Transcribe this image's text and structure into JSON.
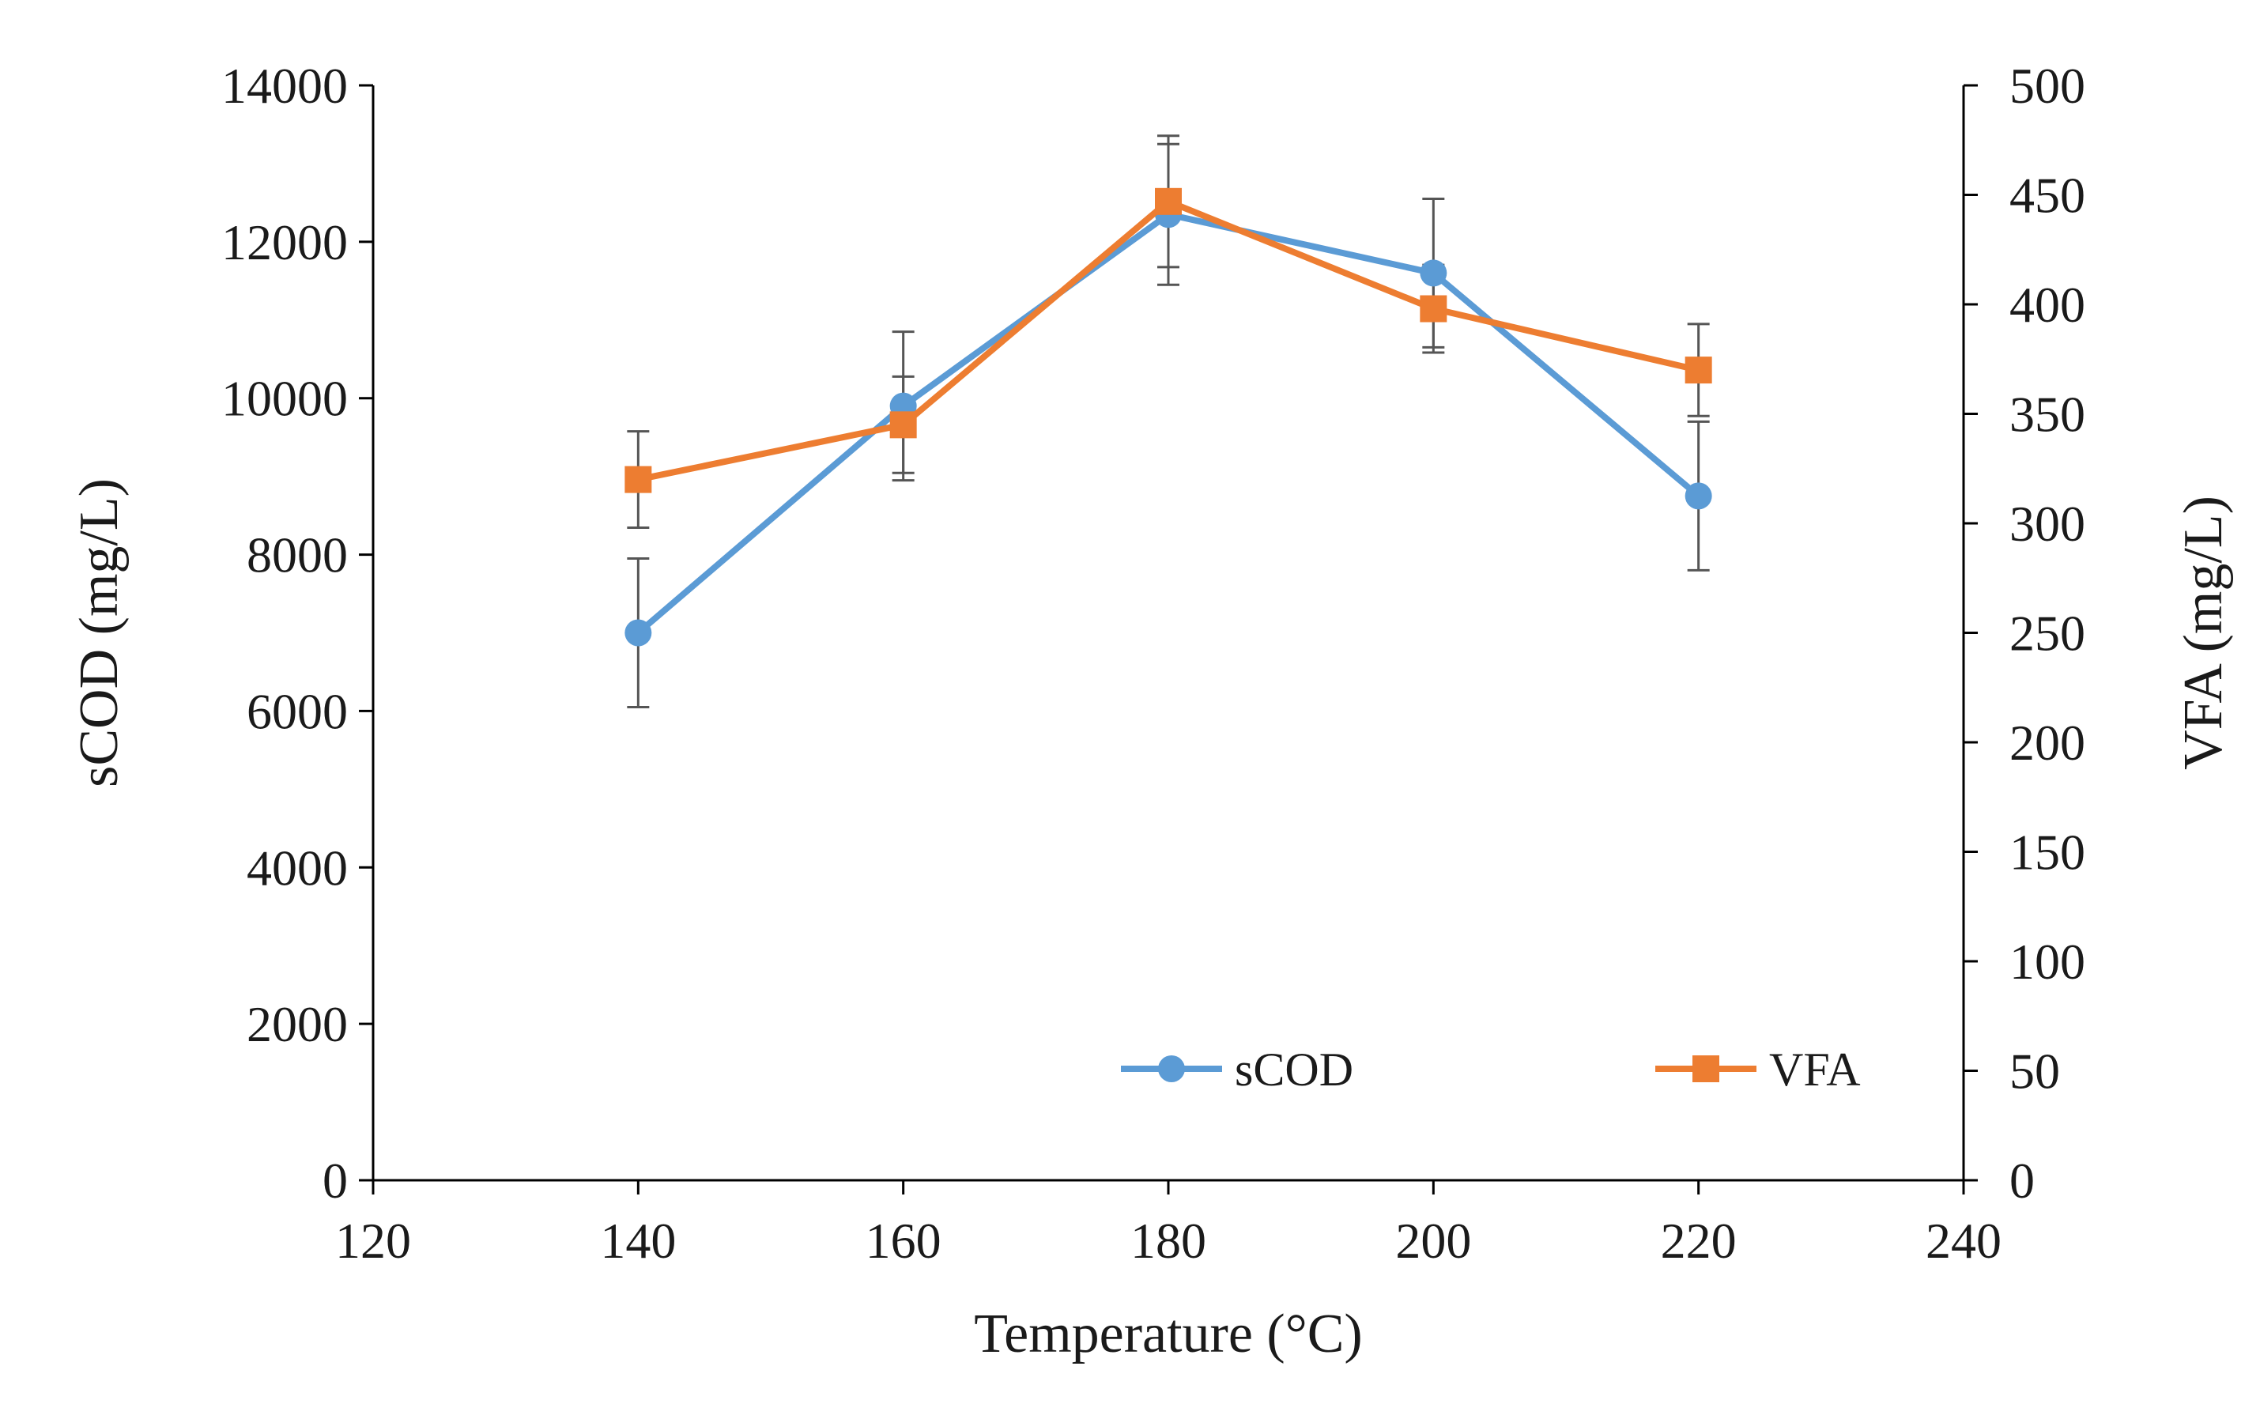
{
  "chart_data": {
    "type": "line",
    "x": [
      140,
      160,
      180,
      200,
      220
    ],
    "xlabel": "Temperature (°C)",
    "xlim": [
      120,
      240
    ],
    "x_ticks": [
      "120",
      "140",
      "160",
      "180",
      "200",
      "220",
      "240"
    ],
    "ylabel_left": "sCOD (mg/L)",
    "ylim_left": [
      0,
      14000
    ],
    "y_ticks_left": [
      "0",
      "2000",
      "4000",
      "6000",
      "8000",
      "10000",
      "12000",
      "14000"
    ],
    "ylabel_right": "VFA (mg/L)",
    "ylim_right": [
      0,
      500
    ],
    "y_ticks_right": [
      "0",
      "50",
      "100",
      "150",
      "200",
      "250",
      "300",
      "350",
      "400",
      "450",
      "500"
    ],
    "grid": false,
    "legend_position": "bottom-right",
    "series": [
      {
        "name": "sCOD",
        "axis": "left",
        "color": "#5b9bd5",
        "marker": "circle",
        "values": [
          7000,
          9900,
          12350,
          11600,
          8750
        ],
        "error": [
          950,
          950,
          900,
          950,
          950
        ]
      },
      {
        "name": "VFA",
        "axis": "right",
        "color": "#ed7d31",
        "marker": "square",
        "values": [
          320,
          345,
          447,
          398,
          370
        ],
        "error": [
          22,
          22,
          30,
          20,
          21
        ]
      }
    ]
  }
}
